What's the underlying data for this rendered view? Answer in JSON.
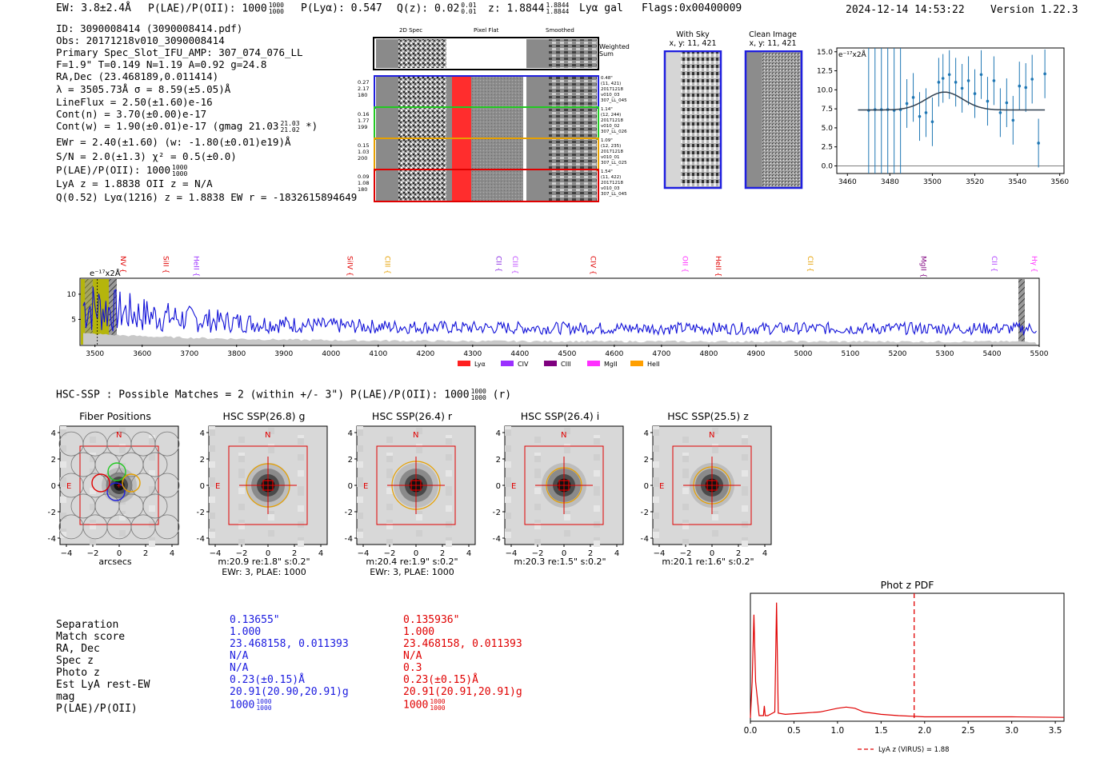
{
  "header": {
    "ew": "EW: 3.8±2.4Å",
    "plae_label": "P(LAE)/P(OII): 1000",
    "plae_hi": "1000",
    "plae_lo": "1000",
    "plya": "P(Lyα): 0.547",
    "qz_label": "Q(z): 0.02",
    "qz_hi": "0.01",
    "qz_lo": "0.01",
    "z_label": "z: 1.8844",
    "z_hi": "1.8844",
    "z_lo": "1.8844",
    "line_tag": "Lyα  gal",
    "flags": "Flags:0x00400009",
    "timestamp": "2024-12-14 14:53:22",
    "version": "Version 1.22.3"
  },
  "info": {
    "id": "ID: 3090008414 (3090008414.pdf)",
    "obs": "Obs: 20171218v010_3090008414",
    "primary": "Primary Spec_Slot_IFU_AMP: 307_074_076_LL",
    "fit": "F=1.9\"  T=0.149  N=1.19  A=0.92  g=24.8",
    "radec": "RA,Dec (23.468189,0.011414)",
    "lambda": "λ = 3505.73Å  σ = 8.59(±5.05)Å",
    "lineflux": "LineFlux = 2.50(±1.60)e-16",
    "contn": "Cont(n) = 3.70(±0.00)e-17",
    "contw": "Cont(w) = 1.90(±0.01)e-17 (gmag 21.03",
    "contw_hi": "21.03",
    "contw_lo": "21.02",
    "contw_end": "*)",
    "ewr": "EWr = 2.40(±1.60) (w: -1.80(±0.01)e19)Å",
    "sn": "S/N = 2.0(±1.3)  χ² = 0.5(±0.0)",
    "plae": "P(LAE)/P(OII): 1000",
    "plae_hi": "1000",
    "plae_lo": "1000",
    "lya_z": "LyA z = 1.8838  OII z = N/A",
    "q": "Q(0.52) Lyα(1216) z = 1.8838  EW r = -1832615894649"
  },
  "cutouts": {
    "col_2d": "2D Spec",
    "col_flat": "Pixel Flat",
    "col_smooth": "Smoothed",
    "weighted": "Weighted Sum",
    "rows": [
      {
        "w1": "0.27",
        "w2": "2.17",
        "w3": "180",
        "note": "0.48\"\n(11, 421)\n20171218\nv010_03\n307_LL_045",
        "color": "#1f1fdf"
      },
      {
        "w1": "0.16",
        "w2": "1.77",
        "w3": "199",
        "note": "1.14\"\n(12, 244)\n20171218\nv010_02\n307_LL_026",
        "color": "#22c922"
      },
      {
        "w1": "0.15",
        "w2": "1.03",
        "w3": "200",
        "note": "1.09\"\n(12, 235)\n20171218\nv010_01\n307_LL_025",
        "color": "#e6a000"
      },
      {
        "w1": "0.09",
        "w2": "1.08",
        "w3": "180",
        "note": "1.54\"\n(11, 422)\n20171218\nv010_03\n307_LL_045",
        "color": "#e00000"
      }
    ]
  },
  "sky": {
    "with_sky": "With Sky",
    "with_sky_xy": "x, y: 11, 421",
    "clean": "Clean Image",
    "clean_xy": "x, y: 11, 421"
  },
  "zoom_plot": {
    "ylabel_unit": "e⁻¹⁷x2Å",
    "yticks": [
      "15.0",
      "12.5",
      "10.0",
      "7.5",
      "5.0",
      "2.5",
      "0.0"
    ],
    "xticks": [
      "3460",
      "3480",
      "3500",
      "3520",
      "3540",
      "3560"
    ]
  },
  "full_spectrum": {
    "unit": "e⁻¹⁷x2Å",
    "yticks": [
      "10",
      "5"
    ],
    "xticks": [
      "3500",
      "3600",
      "3700",
      "3800",
      "3900",
      "4000",
      "4100",
      "4200",
      "4300",
      "4400",
      "4500",
      "4600",
      "4700",
      "4800",
      "4900",
      "5000",
      "5100",
      "5200",
      "5300",
      "5400",
      "5500"
    ],
    "lines": [
      {
        "name": "NV",
        "color": "#e00000"
      },
      {
        "name": "SiII",
        "color": "#e00000"
      },
      {
        "name": "HeII",
        "color": "#9b30ff"
      },
      {
        "name": "SiIV",
        "color": "#e00000"
      },
      {
        "name": "CIII",
        "color": "#e6a000"
      },
      {
        "name": "CII",
        "color": "#8a2be2"
      },
      {
        "name": "CIII",
        "color": "#c050ff"
      },
      {
        "name": "CIV",
        "color": "#e00000"
      },
      {
        "name": "OII",
        "color": "#ff30ff"
      },
      {
        "name": "HeII",
        "color": "#e00000"
      },
      {
        "name": "CII",
        "color": "#e6a000"
      },
      {
        "name": "MgII",
        "color": "#7f007f"
      },
      {
        "name": "CII",
        "color": "#b040ff"
      },
      {
        "name": "Hγ",
        "color": "#ff30ff"
      }
    ],
    "legend": [
      {
        "label": "Lyα",
        "color": "#ff2020"
      },
      {
        "label": "CIV",
        "color": "#9b30ff"
      },
      {
        "label": "CIII",
        "color": "#7f007f"
      },
      {
        "label": "MgII",
        "color": "#ff30ff"
      },
      {
        "label": "HeII",
        "color": "#ff9f00"
      }
    ]
  },
  "hsc": {
    "summary": "HSC-SSP : Possible Matches = 2 (within +/- 3\")  P(LAE)/P(OII): 1000",
    "summary_hi": "1000",
    "summary_lo": "1000",
    "summary_end": "(r)",
    "panels": [
      {
        "title": "Fiber Positions",
        "cap1": "arcsecs",
        "cap2": ""
      },
      {
        "title": "HSC SSP(26.8) g",
        "cap1": "m:20.9  re:1.8\"  s:0.2\"",
        "cap2": "EWr: 3, PLAE: 1000"
      },
      {
        "title": "HSC SSP(26.4) r",
        "cap1": "m:20.4  re:1.9\"  s:0.2\"",
        "cap2": "EWr: 3, PLAE: 1000"
      },
      {
        "title": "HSC SSP(26.4) i",
        "cap1": "m:20.3  re:1.5\"  s:0.2\"",
        "cap2": ""
      },
      {
        "title": "HSC SSP(25.5) z",
        "cap1": "m:20.1  re:1.6\"  s:0.2\"",
        "cap2": ""
      }
    ],
    "axis_ticks_y": [
      "4",
      "2",
      "0",
      "−2",
      "−4"
    ],
    "axis_ticks_x": [
      "−4",
      "−2",
      "0",
      "2",
      "4"
    ],
    "north": "N",
    "east": "E"
  },
  "match_table": {
    "labels": [
      "Separation",
      "Match score",
      "RA, Dec",
      "Spec z",
      "Photo z",
      "Est LyA rest-EW",
      "mag",
      "P(LAE)/P(OII)"
    ],
    "col1": [
      "0.13655\"",
      "1.000",
      "23.468158, 0.011393",
      "N/A",
      "N/A",
      "0.23(±0.15)Å",
      "20.91(20.90,20.91)g",
      "1000"
    ],
    "col2": [
      "0.135936\"",
      "1.000",
      "23.468158, 0.011393",
      "N/A",
      "0.3",
      "0.23(±0.15)Å",
      "20.91(20.91,20.91)g",
      "1000"
    ],
    "frac_hi": "1000",
    "frac_lo": "1000"
  },
  "photz": {
    "title": "Phot z PDF",
    "xticks": [
      "0.0",
      "0.5",
      "1.0",
      "1.5",
      "2.0",
      "2.5",
      "3.0",
      "3.5"
    ],
    "legend": "LyA z (VIRUS) = 1.88"
  },
  "chart_data": [
    {
      "type": "scatter",
      "title": "",
      "xlabel": "",
      "ylabel": "e⁻¹⁷x2Å",
      "xlim": [
        3455,
        3562
      ],
      "ylim": [
        -1,
        15.5
      ],
      "x": [
        3470,
        3473,
        3476,
        3479,
        3482,
        3485,
        3488,
        3491,
        3494,
        3497,
        3500,
        3503,
        3505,
        3508,
        3511,
        3514,
        3517,
        3520,
        3523,
        3526,
        3529,
        3532,
        3535,
        3538,
        3541,
        3544,
        3547,
        3550,
        3553
      ],
      "y": [
        7.3,
        7.4,
        7.4,
        7.4,
        7.3,
        7.4,
        8.2,
        9.0,
        6.5,
        7.0,
        5.8,
        11.0,
        11.5,
        12.0,
        11.0,
        10.2,
        11.2,
        9.5,
        12.0,
        8.5,
        11.2,
        7.0,
        8.3,
        6.0,
        10.5,
        10.3,
        11.4,
        3.0,
        12.1
      ],
      "fit_baseline": 7.35,
      "fit_center": 3505.7,
      "fit_peak": 9.7,
      "fit_sigma": 8.59
    },
    {
      "type": "line",
      "xlabel": "",
      "ylabel": "e⁻¹⁷x2Å",
      "xlim": [
        3470,
        5500
      ],
      "ylim": [
        0,
        13
      ],
      "line_labels_x": [
        3550,
        3640,
        3705,
        4030,
        4110,
        4345,
        4380,
        4545,
        4740,
        4810,
        5005,
        5245,
        5395,
        5480
      ],
      "lya_marker_x": 3505
    },
    {
      "type": "line",
      "title": "Phot z PDF",
      "xlim": [
        0,
        3.6
      ],
      "x": [
        0.0,
        0.02,
        0.04,
        0.06,
        0.1,
        0.15,
        0.16,
        0.17,
        0.2,
        0.28,
        0.3,
        0.32,
        0.4,
        0.6,
        0.8,
        1.0,
        1.1,
        1.2,
        1.3,
        1.5,
        1.7,
        2.0,
        2.5,
        3.0,
        3.6
      ],
      "y": [
        0.0,
        0.3,
        0.85,
        0.3,
        0.02,
        0.02,
        0.1,
        0.02,
        0.02,
        0.05,
        0.95,
        0.04,
        0.03,
        0.04,
        0.05,
        0.08,
        0.09,
        0.08,
        0.05,
        0.03,
        0.02,
        0.01,
        0.01,
        0.01,
        0.005
      ],
      "marker_z": 1.88
    }
  ]
}
